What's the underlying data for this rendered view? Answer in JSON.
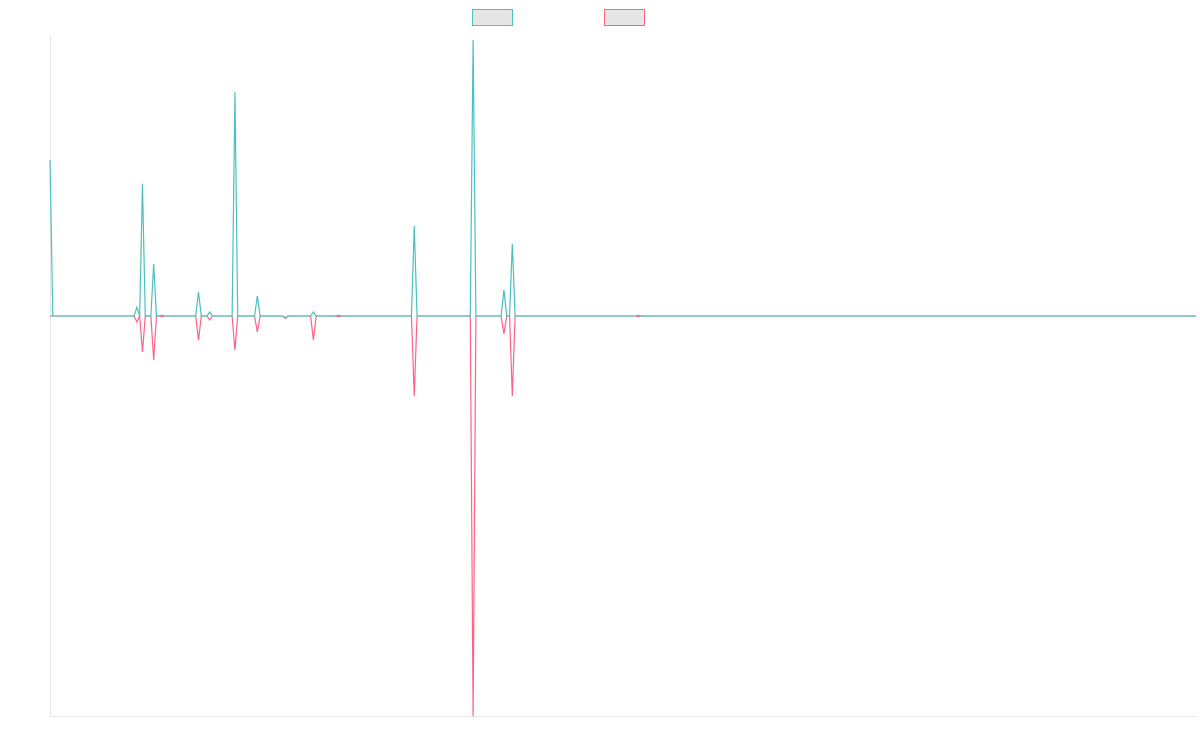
{
  "chart_data": {
    "type": "line",
    "title": "",
    "xlabel": "",
    "ylabel": "",
    "x_count": 410,
    "ylim": [
      -1.0,
      0.7
    ],
    "grid": false,
    "legend_position": "top-center",
    "series": [
      {
        "label": "",
        "color": "#4bc0c0",
        "spikes": [
          {
            "x": 0,
            "y": 0.39
          },
          {
            "x": 31,
            "y": 0.022
          },
          {
            "x": 33,
            "y": 0.33
          },
          {
            "x": 37,
            "y": 0.13
          },
          {
            "x": 40,
            "y": 0.002
          },
          {
            "x": 53,
            "y": 0.06
          },
          {
            "x": 57,
            "y": 0.01
          },
          {
            "x": 66,
            "y": 0.56
          },
          {
            "x": 74,
            "y": 0.05
          },
          {
            "x": 84,
            "y": -0.004
          },
          {
            "x": 94,
            "y": 0.01
          },
          {
            "x": 103,
            "y": 0.002
          },
          {
            "x": 130,
            "y": 0.225
          },
          {
            "x": 151,
            "y": 0.69
          },
          {
            "x": 162,
            "y": 0.065
          },
          {
            "x": 165,
            "y": 0.18
          },
          {
            "x": 210,
            "y": 0.002
          }
        ]
      },
      {
        "label": "",
        "color": "#ff6384",
        "spikes": [
          {
            "x": 31,
            "y": -0.015
          },
          {
            "x": 33,
            "y": -0.09
          },
          {
            "x": 37,
            "y": -0.11
          },
          {
            "x": 40,
            "y": -0.002
          },
          {
            "x": 53,
            "y": -0.06
          },
          {
            "x": 57,
            "y": -0.01
          },
          {
            "x": 66,
            "y": -0.085
          },
          {
            "x": 74,
            "y": -0.04
          },
          {
            "x": 84,
            "y": -0.006
          },
          {
            "x": 94,
            "y": -0.06
          },
          {
            "x": 103,
            "y": -0.002
          },
          {
            "x": 130,
            "y": -0.2
          },
          {
            "x": 151,
            "y": -1.0
          },
          {
            "x": 162,
            "y": -0.045
          },
          {
            "x": 165,
            "y": -0.2
          },
          {
            "x": 210,
            "y": -0.002
          }
        ]
      }
    ]
  }
}
